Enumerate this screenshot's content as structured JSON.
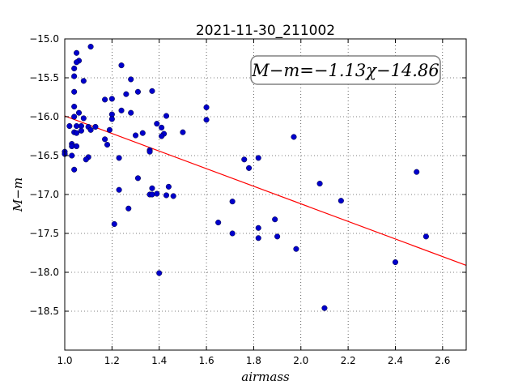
{
  "chart_data": {
    "type": "scatter",
    "title": "2021-11-30_211002",
    "xlabel": "airmass",
    "ylabel": "M−m",
    "xlim": [
      1.0,
      2.7
    ],
    "ylim": [
      -15.0,
      -19.0
    ],
    "y_inverted": true,
    "grid": true,
    "grid_style": "dotted",
    "x_ticks": [
      1.0,
      1.2,
      1.4,
      1.6,
      1.8,
      2.0,
      2.2,
      2.4,
      2.6
    ],
    "x_tick_labels": [
      "1.0",
      "1.2",
      "1.4",
      "1.6",
      "1.8",
      "2.0",
      "2.2",
      "2.4",
      "2.6"
    ],
    "y_ticks": [
      -15.0,
      -15.5,
      -16.0,
      -16.5,
      -17.0,
      -17.5,
      -18.0,
      -18.5
    ],
    "y_tick_labels": [
      "−15.0",
      "−15.5",
      "−16.0",
      "−16.5",
      "−17.0",
      "−17.5",
      "−18.0",
      "−18.5"
    ],
    "annotation": "M−m=−1.13χ−14.86",
    "annotation_position": "top-right",
    "fit": {
      "slope": -1.13,
      "intercept": -14.86,
      "color": "#ff0000"
    },
    "marker_color": "#0000cc",
    "points": [
      [
        1.11,
        -15.1
      ],
      [
        1.05,
        -15.18
      ],
      [
        1.06,
        -15.28
      ],
      [
        1.05,
        -15.3
      ],
      [
        1.04,
        -15.38
      ],
      [
        1.04,
        -15.48
      ],
      [
        1.08,
        -15.54
      ],
      [
        1.24,
        -15.34
      ],
      [
        1.28,
        -15.52
      ],
      [
        1.04,
        -15.68
      ],
      [
        1.26,
        -15.71
      ],
      [
        1.31,
        -15.68
      ],
      [
        1.37,
        -15.67
      ],
      [
        1.17,
        -15.78
      ],
      [
        1.2,
        -15.77
      ],
      [
        1.04,
        -15.87
      ],
      [
        1.24,
        -15.92
      ],
      [
        1.06,
        -15.95
      ],
      [
        1.28,
        -15.95
      ],
      [
        1.2,
        -15.97
      ],
      [
        1.6,
        -15.88
      ],
      [
        1.43,
        -15.99
      ],
      [
        1.6,
        -16.04
      ],
      [
        1.04,
        -16.0
      ],
      [
        1.08,
        -16.02
      ],
      [
        1.2,
        -16.03
      ],
      [
        1.39,
        -16.09
      ],
      [
        1.02,
        -16.12
      ],
      [
        1.05,
        -16.12
      ],
      [
        1.07,
        -16.12
      ],
      [
        1.1,
        -16.13
      ],
      [
        1.13,
        -16.13
      ],
      [
        1.41,
        -16.14
      ],
      [
        1.04,
        -16.2
      ],
      [
        1.07,
        -16.18
      ],
      [
        1.11,
        -16.17
      ],
      [
        1.19,
        -16.17
      ],
      [
        1.33,
        -16.21
      ],
      [
        1.5,
        -16.2
      ],
      [
        1.42,
        -16.22
      ],
      [
        1.05,
        -16.21
      ],
      [
        1.41,
        -16.25
      ],
      [
        1.3,
        -16.24
      ],
      [
        1.97,
        -16.26
      ],
      [
        1.17,
        -16.29
      ],
      [
        1.18,
        -16.36
      ],
      [
        1.03,
        -16.35
      ],
      [
        1.03,
        -16.38
      ],
      [
        1.05,
        -16.38
      ],
      [
        1.36,
        -16.43
      ],
      [
        1.36,
        -16.45
      ],
      [
        1.0,
        -16.45
      ],
      [
        1.0,
        -16.48
      ],
      [
        1.03,
        -16.5
      ],
      [
        1.1,
        -16.52
      ],
      [
        1.09,
        -16.55
      ],
      [
        1.23,
        -16.53
      ],
      [
        1.76,
        -16.55
      ],
      [
        1.82,
        -16.53
      ],
      [
        1.78,
        -16.66
      ],
      [
        1.04,
        -16.68
      ],
      [
        2.49,
        -16.71
      ],
      [
        1.31,
        -16.79
      ],
      [
        2.08,
        -16.86
      ],
      [
        1.44,
        -16.9
      ],
      [
        1.37,
        -16.92
      ],
      [
        1.23,
        -16.94
      ],
      [
        1.36,
        -17.0
      ],
      [
        1.37,
        -17.0
      ],
      [
        1.39,
        -16.99
      ],
      [
        1.43,
        -17.01
      ],
      [
        1.46,
        -17.02
      ],
      [
        1.71,
        -17.09
      ],
      [
        2.17,
        -17.08
      ],
      [
        1.27,
        -17.18
      ],
      [
        1.89,
        -17.32
      ],
      [
        1.65,
        -17.36
      ],
      [
        1.21,
        -17.38
      ],
      [
        1.82,
        -17.43
      ],
      [
        1.71,
        -17.5
      ],
      [
        1.82,
        -17.56
      ],
      [
        1.9,
        -17.54
      ],
      [
        2.53,
        -17.54
      ],
      [
        1.98,
        -17.7
      ],
      [
        2.4,
        -17.87
      ],
      [
        1.4,
        -18.01
      ],
      [
        2.1,
        -18.46
      ]
    ]
  }
}
